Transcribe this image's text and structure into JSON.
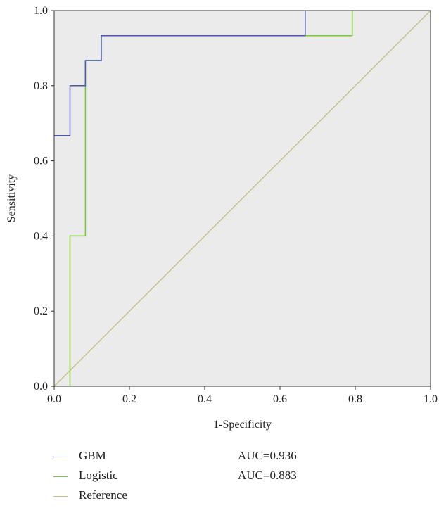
{
  "chart_data": {
    "type": "line",
    "xlabel": "1-Specificity",
    "ylabel": "Sensitivity",
    "xlim": [
      0.0,
      1.0
    ],
    "ylim": [
      0.0,
      1.0
    ],
    "x_ticks": [
      "0.0",
      "0.2",
      "0.4",
      "0.6",
      "0.8",
      "1.0"
    ],
    "y_ticks": [
      "0.0",
      "0.2",
      "0.4",
      "0.6",
      "0.8",
      "1.0"
    ],
    "grid": false,
    "legend_position": "bottom",
    "plot_background": "#ebebeb",
    "series": [
      {
        "name": "GBM",
        "color": "#4a56b0",
        "auc_label": "AUC=0.936",
        "x": [
          0.0,
          0.042,
          0.042,
          0.083,
          0.083,
          0.125,
          0.125,
          0.667,
          0.667
        ],
        "y": [
          0.667,
          0.667,
          0.8,
          0.8,
          0.867,
          0.867,
          0.933,
          0.933,
          1.0
        ]
      },
      {
        "name": "Logistic",
        "color": "#7cc832",
        "auc_label": "AUC=0.883",
        "x": [
          0.042,
          0.042,
          0.083,
          0.083,
          0.125,
          0.125,
          0.792,
          0.792
        ],
        "y": [
          0.0,
          0.4,
          0.4,
          0.867,
          0.867,
          0.933,
          0.933,
          1.0
        ]
      },
      {
        "name": "Reference",
        "color": "#c8c08a",
        "auc_label": "",
        "x": [
          0.0,
          1.0
        ],
        "y": [
          0.0,
          1.0
        ]
      }
    ]
  }
}
